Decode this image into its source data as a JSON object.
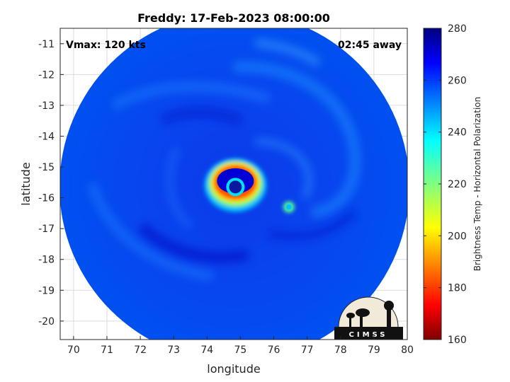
{
  "chart_data": {
    "type": "heatmap",
    "title": "Freddy: 17-Feb-2023 08:00:00",
    "xlabel": "longitude",
    "ylabel": "latitude",
    "xlim": [
      69.6,
      80
    ],
    "ylim": [
      -20.6,
      -10.5
    ],
    "xticks": [
      70,
      71,
      72,
      73,
      74,
      75,
      76,
      77,
      78,
      79,
      80
    ],
    "yticks": [
      -11,
      -12,
      -13,
      -14,
      -15,
      -16,
      -17,
      -18,
      -19,
      -20
    ],
    "grid": true,
    "annotations": {
      "left": "Vmax: 120 kts",
      "right": "02:45 away"
    },
    "colorbar": {
      "label": "Brightness Temp - Horizontal Polarization",
      "range": [
        160,
        280
      ],
      "ticks": [
        160,
        180,
        200,
        220,
        240,
        260,
        280
      ],
      "colormap": "jet"
    },
    "swath": {
      "center_lon": 74.8,
      "center_lat": -15.6,
      "radius_deg": 5.5
    },
    "features": [
      {
        "name": "eyewall",
        "lon": 74.85,
        "lat": -15.5,
        "value": 170
      },
      {
        "name": "eye",
        "lon": 74.85,
        "lat": -15.65,
        "value": 258
      },
      {
        "name": "convective-cell",
        "lon": 76.45,
        "lat": -16.3,
        "value": 198
      }
    ],
    "background_value": 262
  },
  "logo": {
    "text": "CIMSS"
  },
  "colors": {
    "axis": "#262626",
    "grid": "#dcdcdc"
  }
}
